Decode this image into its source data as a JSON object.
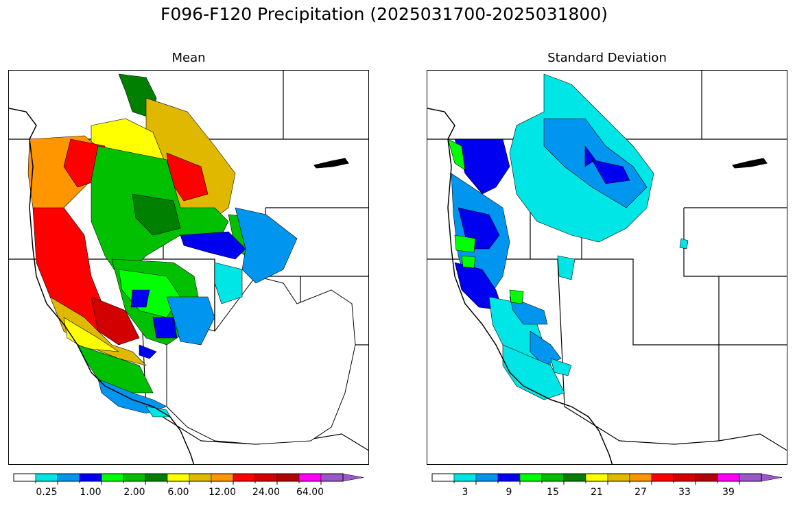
{
  "title": "F096-F120 Precipitation (2025031700-2025031800)",
  "panels": [
    {
      "title": "Mean"
    },
    {
      "title": "Standard Deviation"
    }
  ],
  "colorbar_colors": [
    "#ffffff",
    "#00e5e5",
    "#0096f0",
    "#0000f0",
    "#00ff00",
    "#00c000",
    "#008000",
    "#ffff00",
    "#e0b800",
    "#ff9600",
    "#ff0000",
    "#d20000",
    "#b40000",
    "#ff00ff",
    "#9a57c8"
  ],
  "colorbars": [
    {
      "labels": [
        "0.25",
        "1.00",
        "2.00",
        "6.00",
        "12.00",
        "24.00",
        "64.00"
      ]
    },
    {
      "labels": [
        "3",
        "9",
        "15",
        "21",
        "27",
        "33",
        "39"
      ]
    }
  ]
}
